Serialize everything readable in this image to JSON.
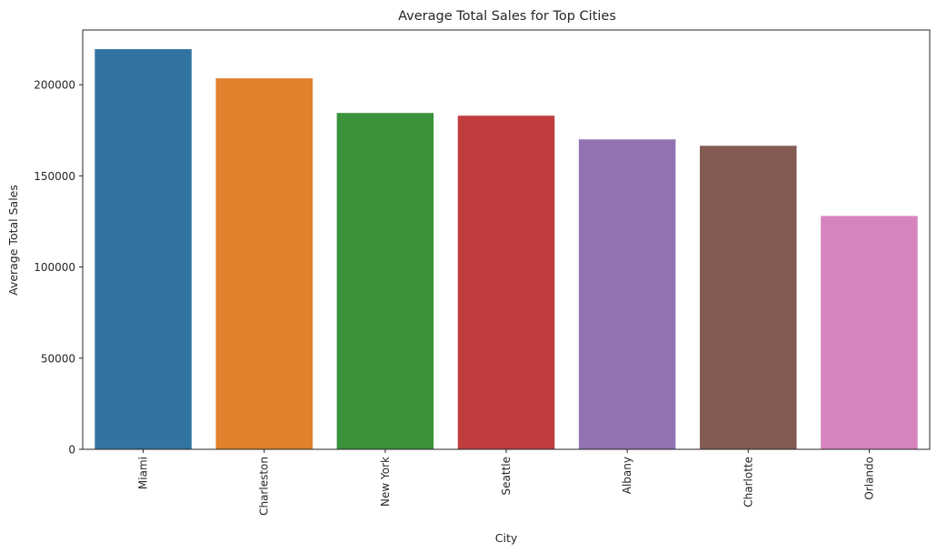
{
  "chart_data": {
    "type": "bar",
    "title": "Average Total Sales for Top Cities",
    "xlabel": "City",
    "ylabel": "Average Total Sales",
    "categories": [
      "Miami",
      "Charleston",
      "New York",
      "Seattle",
      "Albany",
      "Charlotte",
      "Orlando"
    ],
    "values": [
      219500,
      203500,
      184500,
      183000,
      170000,
      166500,
      128000
    ],
    "colors": [
      "#3274a1",
      "#e1812c",
      "#3a923a",
      "#c03d3e",
      "#9372b2",
      "#845b53",
      "#d684bd"
    ],
    "ylim": [
      0,
      230000
    ],
    "yticks": [
      0,
      50000,
      100000,
      150000,
      200000
    ],
    "ytick_labels": [
      "0",
      "50000",
      "100000",
      "150000",
      "200000"
    ],
    "grid": false,
    "legend": "none"
  }
}
